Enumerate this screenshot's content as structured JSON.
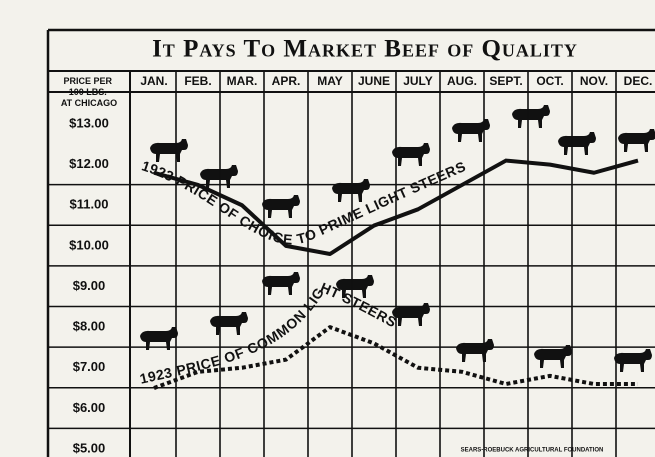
{
  "chart_data": {
    "type": "line",
    "title": "It Pays To Market Beef of Quality",
    "y_label": [
      "PRICE PER",
      "100 LBS.",
      "AT CHICAGO"
    ],
    "credit": "SEARS-ROEBUCK AGRICULTURAL FOUNDATION",
    "categories": [
      "JAN.",
      "FEB.",
      "MAR.",
      "APR.",
      "MAY",
      "JUNE",
      "JULY",
      "AUG.",
      "SEPT.",
      "OCT.",
      "NOV.",
      "DEC."
    ],
    "series": [
      {
        "name": "1923 PRICE OF CHOICE TO PRIME LIGHT STEERS",
        "color": "#111111",
        "dash": "solid",
        "values": [
          11.8,
          11.5,
          11.0,
          10.0,
          9.8,
          10.5,
          10.9,
          11.5,
          12.1,
          12.0,
          11.8,
          12.1
        ]
      },
      {
        "name": "1923 PRICE OF COMMON LIGHT STEERS",
        "color": "#111111",
        "dash": "dotted",
        "values": [
          6.5,
          6.9,
          7.0,
          7.2,
          8.0,
          7.6,
          7.0,
          6.9,
          6.6,
          6.8,
          6.6,
          6.6
        ]
      }
    ],
    "ylim": [
      5,
      13
    ],
    "yticks": [
      {
        "value": 5,
        "label": "$5.00"
      },
      {
        "value": 6,
        "label": "$6.00"
      },
      {
        "value": 7,
        "label": "$7.00"
      },
      {
        "value": 8,
        "label": "$8.00"
      },
      {
        "value": 9,
        "label": "$9.00"
      },
      {
        "value": 10,
        "label": "$10.00"
      },
      {
        "value": 11,
        "label": "$11.00"
      },
      {
        "value": 12,
        "label": "$12.00"
      },
      {
        "value": 13,
        "label": "$13.00"
      }
    ],
    "grid": true
  }
}
